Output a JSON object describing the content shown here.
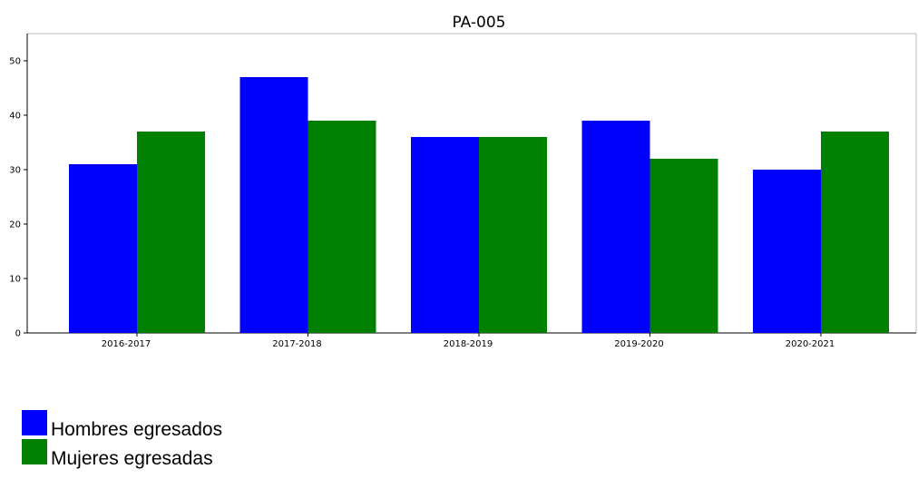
{
  "chart_data": {
    "type": "bar",
    "title": "PA-005",
    "xlabel": "",
    "ylabel": "",
    "categories": [
      "2016-2017",
      "2017-2018",
      "2018-2019",
      "2019-2020",
      "2020-2021"
    ],
    "series": [
      {
        "name": "Hombres egresados",
        "color": "#0000ff",
        "values": [
          31,
          47,
          36,
          39,
          30
        ]
      },
      {
        "name": "Mujeres egresadas",
        "color": "#008000",
        "values": [
          37,
          39,
          36,
          32,
          37
        ]
      }
    ],
    "ylim": [
      0,
      55
    ],
    "yticks": [
      0,
      10,
      20,
      30,
      40,
      50
    ],
    "grid": false,
    "legend_position": "bottom-left"
  }
}
